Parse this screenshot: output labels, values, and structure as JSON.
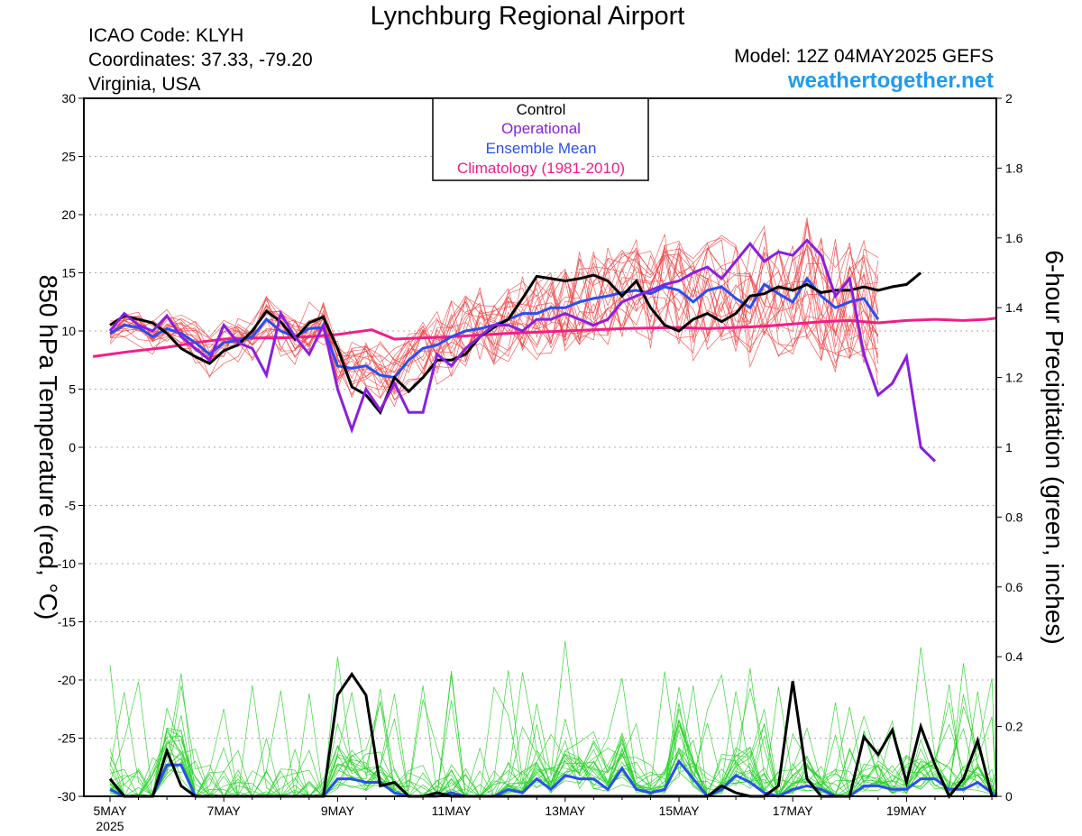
{
  "header": {
    "title": "Lynchburg Regional Airport",
    "icao": "ICAO Code: KLYH",
    "coords": "Coordinates: 37.33, -79.20",
    "region": "Virginia, USA",
    "model": "Model: 12Z 04MAY2025 GEFS",
    "site": "weathertogether.net"
  },
  "legend": [
    {
      "label": "Control",
      "color": "#000000"
    },
    {
      "label": "Operational",
      "color": "#8a1ee0"
    },
    {
      "label": "Ensemble Mean",
      "color": "#2a4ef0"
    },
    {
      "label": "Climatology (1981-2010)",
      "color": "#f01e88"
    }
  ],
  "chart_data": {
    "type": "line",
    "ylabel": "850 hPa Temperature (red, °C)",
    "y2label": "6-hour Precipitation (green, inches)",
    "ylim": [
      -30,
      30
    ],
    "y2lim": [
      0,
      2
    ],
    "yticks": [
      "30",
      "25",
      "20",
      "15",
      "10",
      "5",
      "0",
      "-5",
      "-10",
      "-15",
      "-20",
      "-25",
      "-30"
    ],
    "y2ticks": [
      "2",
      "1.8",
      "1.6",
      "1.4",
      "1.2",
      "1",
      "0.8",
      "0.6",
      "0.4",
      "0.2",
      "0"
    ],
    "xlim": [
      -0.3,
      15.7
    ],
    "xticks": [
      {
        "x": 0,
        "label": "5MAY",
        "sub": "2025"
      },
      {
        "x": 2,
        "label": "7MAY"
      },
      {
        "x": 4,
        "label": "9MAY"
      },
      {
        "x": 6,
        "label": "11MAY"
      },
      {
        "x": 8,
        "label": "13MAY"
      },
      {
        "x": 10,
        "label": "15MAY"
      },
      {
        "x": 12,
        "label": "17MAY"
      },
      {
        "x": 14,
        "label": "19MAY"
      }
    ],
    "x_unit": "days from 5MAY 00Z, 6-hour steps",
    "step_days": 0.25,
    "temp_control": [
      10.5,
      11.3,
      11.0,
      10.7,
      9.8,
      8.5,
      7.8,
      7.2,
      8.3,
      8.8,
      10.0,
      11.7,
      10.8,
      9.3,
      10.7,
      11.2,
      8.5,
      5.2,
      4.5,
      3.0,
      6.0,
      4.8,
      6.0,
      7.5,
      7.5,
      8.0,
      9.5,
      10.3,
      11.0,
      12.8,
      14.7,
      14.5,
      14.3,
      14.5,
      14.8,
      14.3,
      13.0,
      14.3,
      12.0,
      10.5,
      10.0,
      11.0,
      11.5,
      10.8,
      11.5,
      13.0,
      13.2,
      13.8,
      13.5,
      14.0,
      13.3,
      13.5,
      13.5,
      13.8,
      13.5,
      13.8,
      14.0,
      15.0
    ],
    "temp_operational": [
      10.0,
      11.5,
      10.5,
      10.0,
      11.3,
      9.5,
      8.5,
      7.5,
      10.5,
      9.0,
      8.5,
      6.2,
      11.5,
      9.5,
      8.0,
      10.5,
      5.0,
      1.5,
      5.0,
      3.2,
      5.5,
      3.0,
      3.0,
      8.0,
      7.0,
      8.5,
      9.5,
      10.5,
      10.5,
      10.0,
      11.0,
      11.0,
      11.5,
      11.0,
      10.5,
      11.0,
      12.5,
      13.0,
      13.5,
      14.0,
      14.3,
      15.0,
      15.5,
      14.5,
      16.0,
      17.5,
      16.0,
      16.8,
      16.5,
      17.8,
      16.5,
      13.0,
      14.5,
      8.0,
      4.5,
      5.5,
      7.8,
      0.0,
      -1.2
    ],
    "temp_ensemble_mean": [
      9.8,
      10.5,
      10.3,
      9.5,
      10.2,
      9.8,
      9.0,
      8.0,
      9.0,
      9.2,
      9.5,
      11.0,
      10.0,
      9.5,
      10.2,
      10.3,
      7.0,
      6.8,
      7.0,
      6.2,
      6.0,
      7.5,
      8.5,
      8.8,
      9.5,
      10.0,
      10.2,
      10.5,
      11.0,
      11.5,
      11.5,
      12.0,
      12.0,
      12.5,
      12.8,
      13.0,
      13.3,
      13.5,
      13.2,
      13.8,
      13.5,
      12.5,
      13.5,
      13.8,
      12.8,
      12.0,
      14.0,
      13.2,
      12.5,
      14.5,
      13.0,
      12.0,
      12.5,
      12.8,
      11.0
    ],
    "temp_climatology": [
      7.8,
      8.2,
      8.6,
      9.0,
      9.3,
      9.4,
      9.4,
      9.5,
      9.7,
      9.9,
      10.1,
      9.3,
      9.5,
      9.8,
      10.0,
      10.2,
      10.3,
      10.2,
      10.3,
      10.4,
      10.6,
      10.8,
      10.9,
      10.7,
      10.9,
      11.0,
      10.9,
      11.0,
      11.1
    ],
    "temp_climatology_x": [
      -0.3,
      0.3,
      1.0,
      1.5,
      2.0,
      2.5,
      3.0,
      3.5,
      4.0,
      4.3,
      4.6,
      5.0,
      6.0,
      7.0,
      8.0,
      9.0,
      10.0,
      10.5,
      11.0,
      11.5,
      12.0,
      12.5,
      13.0,
      13.5,
      14.0,
      14.5,
      15.0,
      15.4,
      15.7
    ],
    "precip_control": [
      0.05,
      0.0,
      0.0,
      0.0,
      0.13,
      0.03,
      0.0,
      0.0,
      0.0,
      0.0,
      0.0,
      0.0,
      0.0,
      0.0,
      0.0,
      0.0,
      0.29,
      0.35,
      0.29,
      0.03,
      0.04,
      0.0,
      0.0,
      0.01,
      0.0,
      0.0,
      0.0,
      0.0,
      0.0,
      0.0,
      0.0,
      0.0,
      0.0,
      0.0,
      0.0,
      0.0,
      0.0,
      0.0,
      0.0,
      0.0,
      0.0,
      0.0,
      0.0,
      0.03,
      0.01,
      0.0,
      0.0,
      0.03,
      0.33,
      0.05,
      0.0,
      0.0,
      0.0,
      0.17,
      0.12,
      0.19,
      0.04,
      0.2,
      0.09,
      0.0,
      0.05,
      0.16,
      0.0
    ],
    "precip_ensemble_mean": [
      0.02,
      0.0,
      0.0,
      0.0,
      0.09,
      0.09,
      0.0,
      0.0,
      0.0,
      0.0,
      0.0,
      0.0,
      0.0,
      0.0,
      0.0,
      0.0,
      0.05,
      0.05,
      0.04,
      0.04,
      0.01,
      0.0,
      0.0,
      0.0,
      0.01,
      0.0,
      0.0,
      0.0,
      0.02,
      0.01,
      0.05,
      0.02,
      0.06,
      0.05,
      0.05,
      0.02,
      0.08,
      0.02,
      0.01,
      0.02,
      0.1,
      0.05,
      0.0,
      0.02,
      0.06,
      0.04,
      0.01,
      0.0,
      0.02,
      0.03,
      0.02,
      0.0,
      0.0,
      0.03,
      0.03,
      0.02,
      0.02,
      0.05,
      0.05,
      0.02,
      0.02,
      0.04,
      0.01,
      0.0
    ]
  }
}
